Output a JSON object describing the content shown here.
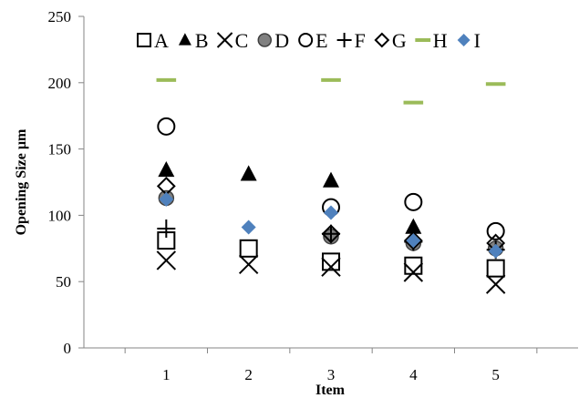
{
  "chart_data": {
    "type": "scatter",
    "title": "",
    "xlabel": "Item",
    "ylabel": "Opening Size µm",
    "categories": [
      "1",
      "2",
      "3",
      "4",
      "5"
    ],
    "xlim": [
      0,
      6
    ],
    "ylim": [
      0,
      250
    ],
    "yticks": [
      "0",
      "50",
      "100",
      "150",
      "200",
      "250"
    ],
    "grid": false,
    "legend_position": "top",
    "series": [
      {
        "name": "A",
        "marker": "square-open",
        "color": "#000000",
        "values": [
          81,
          75,
          65,
          62,
          60
        ]
      },
      {
        "name": "B",
        "marker": "triangle-filled",
        "color": "#000000",
        "values": [
          134,
          131,
          126,
          91,
          null
        ]
      },
      {
        "name": "C",
        "marker": "x",
        "color": "#000000",
        "values": [
          66,
          63,
          61,
          57,
          48
        ]
      },
      {
        "name": "D",
        "marker": "circle-filled",
        "color": "#808080",
        "values": [
          113,
          null,
          84,
          79,
          75
        ]
      },
      {
        "name": "E",
        "marker": "circle-open",
        "color": "#000000",
        "values": [
          167,
          null,
          106,
          110,
          88
        ]
      },
      {
        "name": "F",
        "marker": "plus",
        "color": "#000000",
        "values": [
          90,
          null,
          86,
          80,
          74
        ]
      },
      {
        "name": "G",
        "marker": "diamond-open",
        "color": "#000000",
        "values": [
          122,
          null,
          86,
          81,
          79
        ]
      },
      {
        "name": "H",
        "marker": "dash",
        "color": "#9bbb59",
        "values": [
          202,
          null,
          202,
          185,
          199
        ]
      },
      {
        "name": "I",
        "marker": "diamond-filled",
        "color": "#4f81bd",
        "values": [
          112,
          91,
          102,
          81,
          73
        ]
      }
    ]
  }
}
